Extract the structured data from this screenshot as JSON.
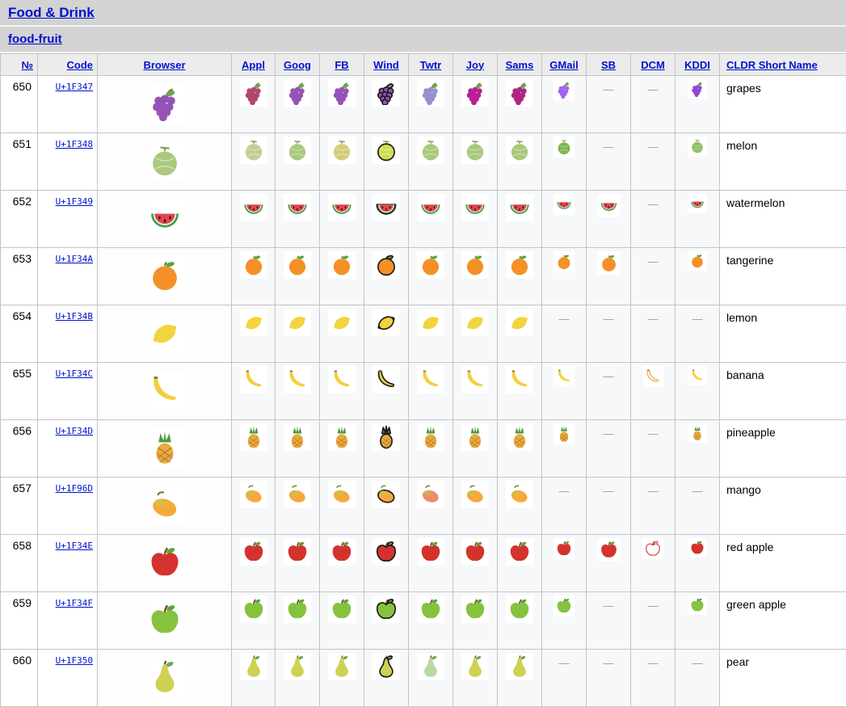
{
  "page": {
    "section_title": "Food & Drink",
    "subsection_title": "food-fruit"
  },
  "theme": {
    "link_color": "#0011cc",
    "band_background": "#d3d3d3",
    "header_background": "#ececec",
    "cell_border": "#c4c4c4",
    "missing_dash_color": "#999999"
  },
  "table": {
    "missing_marker": "—",
    "columns": [
      {
        "id": "num",
        "label": "№"
      },
      {
        "id": "code",
        "label": "Code"
      },
      {
        "id": "browser",
        "label": "Browser"
      },
      {
        "id": "appl",
        "label": "Appl"
      },
      {
        "id": "goog",
        "label": "Goog"
      },
      {
        "id": "fb",
        "label": "FB"
      },
      {
        "id": "wind",
        "label": "Wind"
      },
      {
        "id": "twtr",
        "label": "Twtr"
      },
      {
        "id": "joy",
        "label": "Joy"
      },
      {
        "id": "sams",
        "label": "Sams"
      },
      {
        "id": "gmail",
        "label": "GMail"
      },
      {
        "id": "sb",
        "label": "SB"
      },
      {
        "id": "dcm",
        "label": "DCM"
      },
      {
        "id": "kddi",
        "label": "KDDI"
      },
      {
        "id": "name",
        "label": "CLDR Short Name"
      }
    ],
    "rows": [
      {
        "num": "650",
        "code": "U+1F347",
        "name": "grapes",
        "shape": "grapes",
        "fill": "#9553b4",
        "accent": "#6aa84f",
        "missing": [
          "sb",
          "dcm"
        ],
        "variants": {
          "appl": "#b5446d",
          "twtr": "#978fce",
          "joy": "#bb1f97",
          "sams": "#b12580",
          "gmail": "#a463f2",
          "kddi": "#8d49cf"
        }
      },
      {
        "num": "651",
        "code": "U+1F348",
        "name": "melon",
        "shape": "melon",
        "fill": "#a9c97c",
        "accent": "#7a9b3e",
        "missing": [
          "sb",
          "dcm"
        ],
        "variants": {
          "appl": "#c6cc96",
          "fb": "#d3cc7a",
          "wind": "#cede52",
          "gmail": "#7cb651",
          "kddi": "#8fbf62"
        }
      },
      {
        "num": "652",
        "code": "U+1F349",
        "name": "watermelon",
        "shape": "watermelon",
        "fill": "#e3444a",
        "accent": "#3e9e4e",
        "missing": [
          "dcm"
        ],
        "variants": {}
      },
      {
        "num": "653",
        "code": "U+1F34A",
        "name": "tangerine",
        "shape": "tangerine",
        "fill": "#f59027",
        "accent": "#57a63d",
        "missing": [
          "dcm"
        ],
        "variants": {}
      },
      {
        "num": "654",
        "code": "U+1F34B",
        "name": "lemon",
        "shape": "lemon",
        "fill": "#f2d43d",
        "accent": "#6aa84f",
        "missing": [
          "gmail",
          "sb",
          "dcm",
          "kddi"
        ],
        "variants": {}
      },
      {
        "num": "655",
        "code": "U+1F34C",
        "name": "banana",
        "shape": "banana",
        "fill": "#f3cf3f",
        "accent": "#8a6d3b",
        "missing": [
          "sb"
        ],
        "variants": {
          "dcm": "#f0a03c"
        }
      },
      {
        "num": "656",
        "code": "U+1F34D",
        "name": "pineapple",
        "shape": "pineapple",
        "fill": "#eaaa3e",
        "accent": "#4c9a3f",
        "missing": [
          "sb",
          "dcm"
        ],
        "variants": {}
      },
      {
        "num": "657",
        "code": "U+1F96D",
        "name": "mango",
        "shape": "mango",
        "fill": "#f6a93b",
        "accent": "#bacc4e",
        "missing": [
          "gmail",
          "sb",
          "dcm",
          "kddi"
        ],
        "variants": {
          "twtr": "#f08a6c"
        }
      },
      {
        "num": "658",
        "code": "U+1F34E",
        "name": "red apple",
        "shape": "apple",
        "fill": "#d4322c",
        "accent": "#5da23e",
        "missing": [],
        "variants": {}
      },
      {
        "num": "659",
        "code": "U+1F34F",
        "name": "green apple",
        "shape": "apple",
        "fill": "#85c33e",
        "accent": "#57a63d",
        "missing": [
          "sb",
          "dcm"
        ],
        "variants": {}
      },
      {
        "num": "660",
        "code": "U+1F350",
        "name": "pear",
        "shape": "pear",
        "fill": "#cfd153",
        "accent": "#6aa84f",
        "missing": [
          "gmail",
          "sb",
          "dcm",
          "kddi"
        ],
        "variants": {
          "twtr": "#b8d9a5"
        }
      }
    ]
  }
}
